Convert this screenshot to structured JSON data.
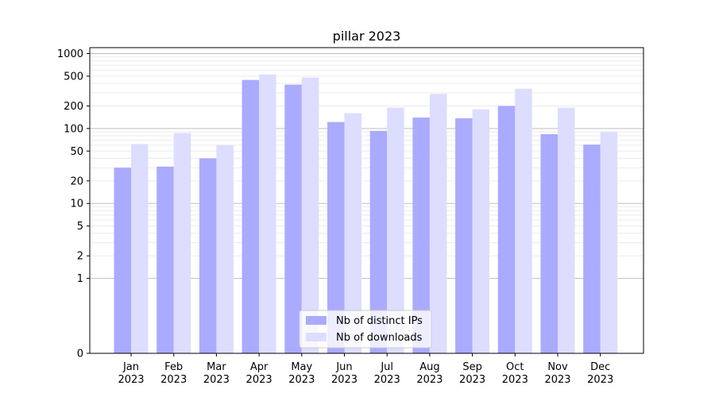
{
  "chart_data": {
    "type": "bar",
    "title": "pillar 2023",
    "xlabel": "",
    "ylabel": "",
    "scale": "symlog",
    "ylim": [
      0,
      1200
    ],
    "yticks": [
      0,
      1,
      2,
      5,
      10,
      20,
      50,
      100,
      200,
      500,
      1000
    ],
    "grid": true,
    "legend_position": "bottom-center",
    "categories": [
      {
        "month": "Jan",
        "year": "2023"
      },
      {
        "month": "Feb",
        "year": "2023"
      },
      {
        "month": "Mar",
        "year": "2023"
      },
      {
        "month": "Apr",
        "year": "2023"
      },
      {
        "month": "May",
        "year": "2023"
      },
      {
        "month": "Jun",
        "year": "2023"
      },
      {
        "month": "Jul",
        "year": "2023"
      },
      {
        "month": "Aug",
        "year": "2023"
      },
      {
        "month": "Sep",
        "year": "2023"
      },
      {
        "month": "Oct",
        "year": "2023"
      },
      {
        "month": "Nov",
        "year": "2023"
      },
      {
        "month": "Dec",
        "year": "2023"
      }
    ],
    "series": [
      {
        "name": "Nb of distinct IPs",
        "color": "#aaaaff",
        "values": [
          30,
          31,
          40,
          445,
          385,
          122,
          93,
          140,
          137,
          200,
          84,
          61
        ]
      },
      {
        "name": "Nb of downloads",
        "color": "#ddddff",
        "values": [
          62,
          87,
          60,
          525,
          480,
          160,
          190,
          290,
          180,
          340,
          190,
          90
        ]
      }
    ]
  }
}
